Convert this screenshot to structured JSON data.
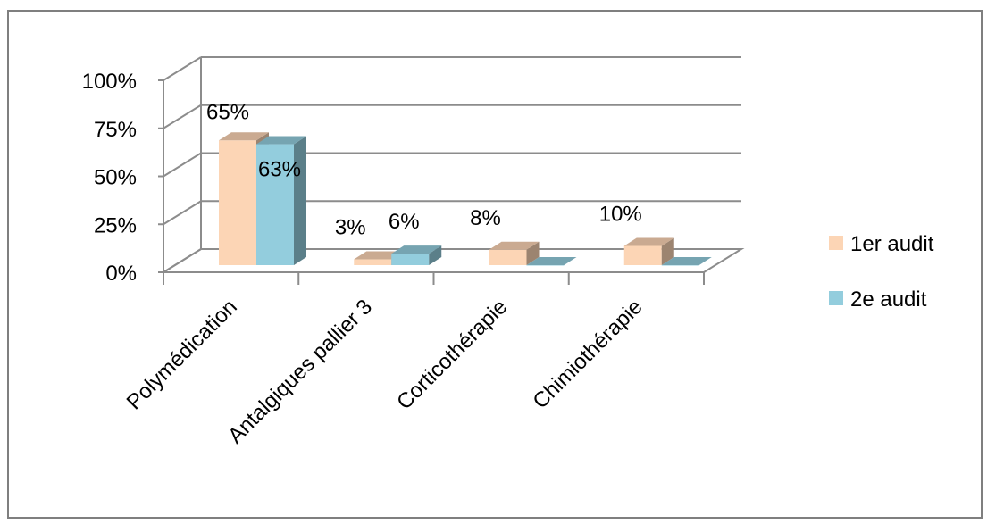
{
  "chart_data": {
    "type": "bar",
    "title": "",
    "xlabel": "",
    "ylabel": "",
    "ylim": [
      0,
      100
    ],
    "y_ticks": [
      "0%",
      "25%",
      "50%",
      "75%",
      "100%"
    ],
    "y_tick_values": [
      0,
      25,
      50,
      75,
      100
    ],
    "categories": [
      "Polymédication",
      "Antalgiques pallier 3",
      "Corticothérapie",
      "Chimiothérapie"
    ],
    "series": [
      {
        "name": "1er audit",
        "values": [
          65,
          3,
          8,
          10
        ],
        "labels": [
          "65%",
          "3%",
          "8%",
          "10%"
        ],
        "color": "#fcd5b5"
      },
      {
        "name": "2e audit",
        "values": [
          63,
          6,
          0,
          0
        ],
        "labels": [
          "63%",
          "6%",
          "",
          ""
        ],
        "color": "#93cddd"
      }
    ],
    "legend_position": "right",
    "grid": true,
    "style": "3d"
  }
}
